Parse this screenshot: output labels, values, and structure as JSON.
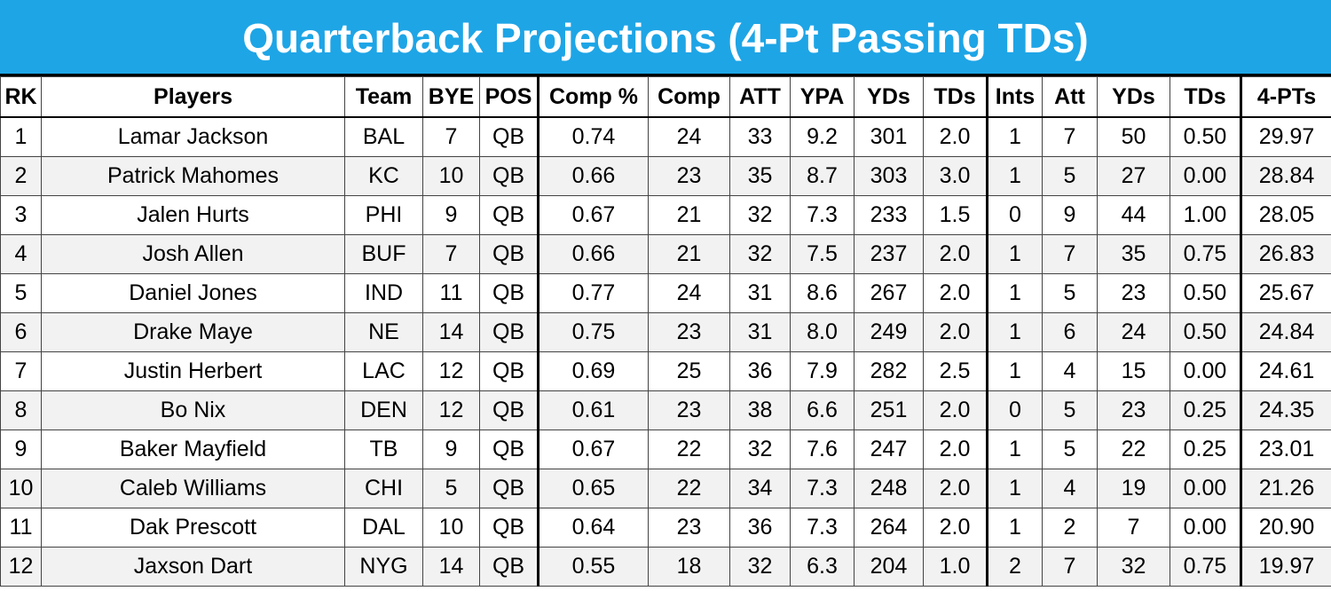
{
  "header": {
    "title": "Quarterback Projections (4-Pt Passing TDs)"
  },
  "table": {
    "columns": [
      "RK",
      "Players",
      "Team",
      "BYE",
      "POS",
      "Comp %",
      "Comp",
      "ATT",
      "YPA",
      "YDs",
      "TDs",
      "Ints",
      "Att",
      "YDs",
      "TDs",
      "4-PTs"
    ],
    "rows": [
      [
        "1",
        "Lamar Jackson",
        "BAL",
        "7",
        "QB",
        "0.74",
        "24",
        "33",
        "9.2",
        "301",
        "2.0",
        "1",
        "7",
        "50",
        "0.50",
        "29.97"
      ],
      [
        "2",
        "Patrick Mahomes",
        "KC",
        "10",
        "QB",
        "0.66",
        "23",
        "35",
        "8.7",
        "303",
        "3.0",
        "1",
        "5",
        "27",
        "0.00",
        "28.84"
      ],
      [
        "3",
        "Jalen Hurts",
        "PHI",
        "9",
        "QB",
        "0.67",
        "21",
        "32",
        "7.3",
        "233",
        "1.5",
        "0",
        "9",
        "44",
        "1.00",
        "28.05"
      ],
      [
        "4",
        "Josh Allen",
        "BUF",
        "7",
        "QB",
        "0.66",
        "21",
        "32",
        "7.5",
        "237",
        "2.0",
        "1",
        "7",
        "35",
        "0.75",
        "26.83"
      ],
      [
        "5",
        "Daniel Jones",
        "IND",
        "11",
        "QB",
        "0.77",
        "24",
        "31",
        "8.6",
        "267",
        "2.0",
        "1",
        "5",
        "23",
        "0.50",
        "25.67"
      ],
      [
        "6",
        "Drake Maye",
        "NE",
        "14",
        "QB",
        "0.75",
        "23",
        "31",
        "8.0",
        "249",
        "2.0",
        "1",
        "6",
        "24",
        "0.50",
        "24.84"
      ],
      [
        "7",
        "Justin Herbert",
        "LAC",
        "12",
        "QB",
        "0.69",
        "25",
        "36",
        "7.9",
        "282",
        "2.5",
        "1",
        "4",
        "15",
        "0.00",
        "24.61"
      ],
      [
        "8",
        "Bo Nix",
        "DEN",
        "12",
        "QB",
        "0.61",
        "23",
        "38",
        "6.6",
        "251",
        "2.0",
        "0",
        "5",
        "23",
        "0.25",
        "24.35"
      ],
      [
        "9",
        "Baker Mayfield",
        "TB",
        "9",
        "QB",
        "0.67",
        "22",
        "32",
        "7.6",
        "247",
        "2.0",
        "1",
        "5",
        "22",
        "0.25",
        "23.01"
      ],
      [
        "10",
        "Caleb Williams",
        "CHI",
        "5",
        "QB",
        "0.65",
        "22",
        "34",
        "7.3",
        "248",
        "2.0",
        "1",
        "4",
        "19",
        "0.00",
        "21.26"
      ],
      [
        "11",
        "Dak Prescott",
        "DAL",
        "10",
        "QB",
        "0.64",
        "23",
        "36",
        "7.3",
        "264",
        "2.0",
        "1",
        "2",
        "7",
        "0.00",
        "20.90"
      ],
      [
        "12",
        "Jaxson Dart",
        "NYG",
        "14",
        "QB",
        "0.55",
        "18",
        "32",
        "6.3",
        "204",
        "1.0",
        "2",
        "7",
        "32",
        "0.75",
        "19.97"
      ]
    ]
  }
}
